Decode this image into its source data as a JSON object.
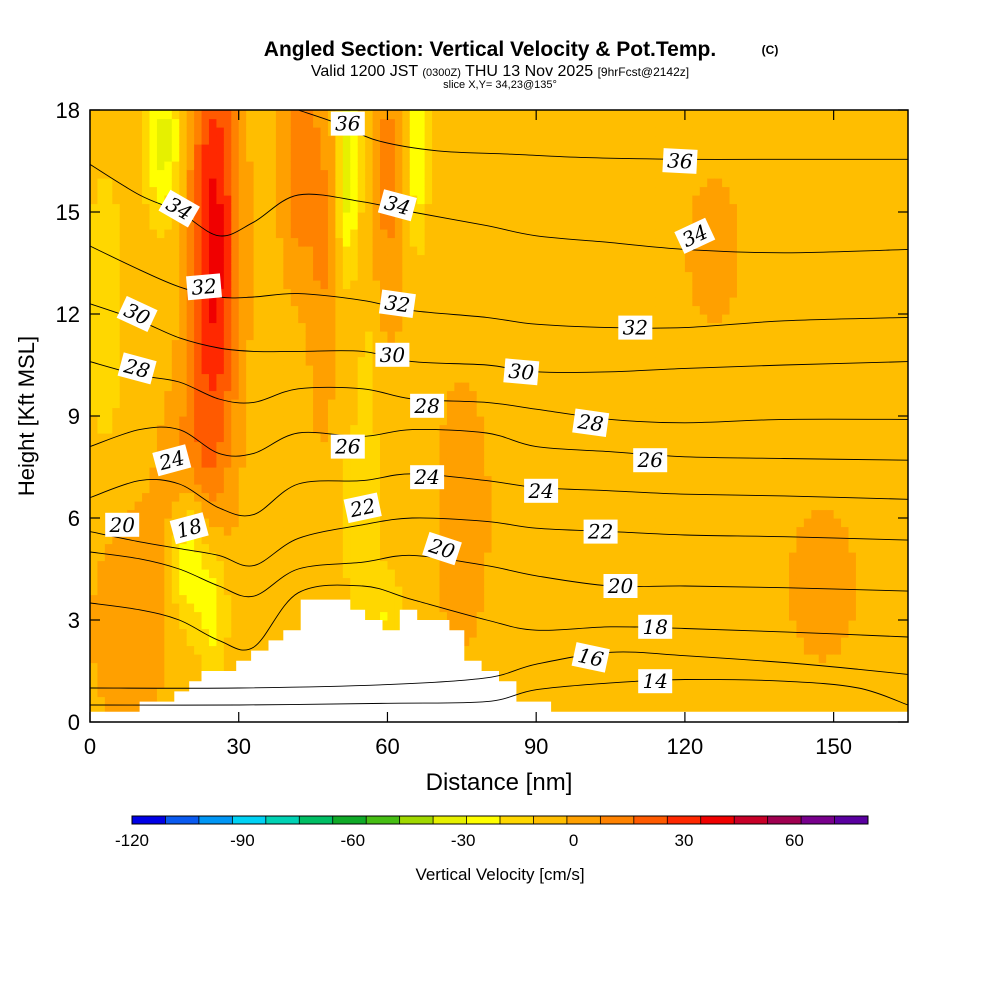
{
  "chart_data": {
    "type": "heatmap",
    "title": "Angled Section: Vertical Velocity & Pot.Temp.",
    "title_units": "(C)",
    "subtitle": {
      "valid_prefix": "Valid 1200 JST",
      "utc": "(0300Z)",
      "date": "THU 13 Nov 2025",
      "fcst": "[9hrFcst@2142z]"
    },
    "slice_label": "slice X,Y= 34,23@135°",
    "xlabel": "Distance [nm]",
    "ylabel": "Height [Kft MSL]",
    "xlim": [
      0,
      165
    ],
    "ylim": [
      0,
      18
    ],
    "xticks": [
      "0",
      "30",
      "60",
      "90",
      "120",
      "150"
    ],
    "xtick_values": [
      0,
      30,
      60,
      90,
      120,
      150
    ],
    "yticks": [
      "0",
      "3",
      "6",
      "9",
      "12",
      "15",
      "18"
    ],
    "ytick_values": [
      0,
      3,
      6,
      9,
      12,
      15,
      18
    ],
    "colorbar": {
      "label": "Vertical Velocity [cm/s]",
      "range": [
        -120,
        80
      ],
      "step": 10,
      "tick_labels": [
        "-120",
        "-90",
        "-60",
        "-30",
        "0",
        "30",
        "60"
      ],
      "tick_values": [
        -120,
        -90,
        -60,
        -30,
        0,
        30,
        60
      ],
      "colors": [
        "#0000e6",
        "#0a5af0",
        "#0096f5",
        "#00d2f5",
        "#00d2b4",
        "#00be64",
        "#10aa28",
        "#46be14",
        "#a0d800",
        "#e6f000",
        "#ffff00",
        "#ffd700",
        "#ffbe00",
        "#ffa000",
        "#ff8200",
        "#ff5a00",
        "#ff2800",
        "#f00000",
        "#c80028",
        "#a00050",
        "#78008c",
        "#5a00a0"
      ]
    },
    "terrain_profile": {
      "x_nm": [
        0,
        10,
        10,
        17,
        17,
        20,
        20,
        22.5,
        22.5,
        29.5,
        29.5,
        32.5,
        32.5,
        36,
        36,
        39,
        39,
        42.5,
        42.5,
        52.5,
        52.5,
        55.5,
        55.5,
        59,
        59,
        62.5,
        62.5,
        66,
        66,
        72.5,
        72.5,
        75.5,
        75.5,
        79,
        79,
        82.5,
        82.5,
        86,
        86,
        93,
        93,
        165
      ],
      "h_kft": [
        0.3,
        0.3,
        0.6,
        0.6,
        0.9,
        0.9,
        1.2,
        1.2,
        1.5,
        1.5,
        1.8,
        1.8,
        2.1,
        2.1,
        2.4,
        2.4,
        2.7,
        2.7,
        3.6,
        3.6,
        3.3,
        3.3,
        3.0,
        3.0,
        2.7,
        2.7,
        3.3,
        3.3,
        3.0,
        3.0,
        2.7,
        2.7,
        1.8,
        1.8,
        1.5,
        1.5,
        1.2,
        1.2,
        0.6,
        0.6,
        0.3,
        0.3
      ]
    },
    "theta_contours": [
      {
        "value": 14,
        "points": [
          [
            0,
            0.5
          ],
          [
            30,
            0.5
          ],
          [
            60,
            0.55
          ],
          [
            80,
            0.6
          ],
          [
            90,
            0.95
          ],
          [
            105,
            1.15
          ],
          [
            120,
            1.25
          ],
          [
            140,
            1.2
          ],
          [
            155,
            1.0
          ],
          [
            165,
            0.5
          ]
        ]
      },
      {
        "value": 16,
        "points": [
          [
            0,
            1.0
          ],
          [
            30,
            1.0
          ],
          [
            60,
            1.1
          ],
          [
            80,
            1.3
          ],
          [
            90,
            1.7
          ],
          [
            105,
            2.05
          ],
          [
            120,
            1.95
          ],
          [
            140,
            1.75
          ],
          [
            155,
            1.55
          ],
          [
            165,
            1.4
          ]
        ]
      },
      {
        "value": 18,
        "points": [
          [
            0,
            3.5
          ],
          [
            10,
            3.3
          ],
          [
            18,
            3.0
          ],
          [
            26,
            2.4
          ],
          [
            33,
            2.2
          ],
          [
            42,
            3.8
          ],
          [
            55,
            4.0
          ],
          [
            65,
            3.6
          ],
          [
            80,
            3.0
          ],
          [
            90,
            2.7
          ],
          [
            105,
            2.8
          ],
          [
            120,
            2.75
          ],
          [
            140,
            2.65
          ],
          [
            165,
            2.5
          ]
        ]
      },
      {
        "value": 20,
        "points": [
          [
            0,
            5.0
          ],
          [
            10,
            4.8
          ],
          [
            18,
            4.5
          ],
          [
            26,
            4.0
          ],
          [
            33,
            3.7
          ],
          [
            42,
            4.5
          ],
          [
            55,
            4.7
          ],
          [
            65,
            4.9
          ],
          [
            80,
            4.6
          ],
          [
            90,
            4.3
          ],
          [
            105,
            4.0
          ],
          [
            120,
            4.0
          ],
          [
            140,
            3.95
          ],
          [
            165,
            3.85
          ]
        ]
      },
      {
        "value": 22,
        "points": [
          [
            0,
            5.6
          ],
          [
            10,
            5.3
          ],
          [
            18,
            5.1
          ],
          [
            26,
            4.9
          ],
          [
            33,
            4.6
          ],
          [
            42,
            5.4
          ],
          [
            55,
            5.8
          ],
          [
            65,
            6.0
          ],
          [
            80,
            5.9
          ],
          [
            90,
            5.7
          ],
          [
            105,
            5.6
          ],
          [
            120,
            5.5
          ],
          [
            140,
            5.45
          ],
          [
            165,
            5.35
          ]
        ]
      },
      {
        "value": 24,
        "points": [
          [
            0,
            6.6
          ],
          [
            10,
            7.1
          ],
          [
            18,
            7.0
          ],
          [
            26,
            6.3
          ],
          [
            33,
            6.1
          ],
          [
            42,
            7.0
          ],
          [
            55,
            7.1
          ],
          [
            65,
            7.3
          ],
          [
            80,
            7.1
          ],
          [
            90,
            6.9
          ],
          [
            105,
            6.8
          ],
          [
            120,
            6.7
          ],
          [
            140,
            6.65
          ],
          [
            165,
            6.55
          ]
        ]
      },
      {
        "value": 26,
        "points": [
          [
            0,
            8.1
          ],
          [
            10,
            8.6
          ],
          [
            18,
            8.6
          ],
          [
            26,
            7.9
          ],
          [
            33,
            7.9
          ],
          [
            42,
            8.5
          ],
          [
            55,
            8.4
          ],
          [
            65,
            8.6
          ],
          [
            80,
            8.5
          ],
          [
            90,
            8.1
          ],
          [
            105,
            7.95
          ],
          [
            120,
            7.8
          ],
          [
            140,
            7.75
          ],
          [
            165,
            7.7
          ]
        ]
      },
      {
        "value": 28,
        "points": [
          [
            0,
            10.6
          ],
          [
            10,
            10.2
          ],
          [
            18,
            10.0
          ],
          [
            26,
            9.5
          ],
          [
            33,
            9.4
          ],
          [
            42,
            9.8
          ],
          [
            55,
            9.8
          ],
          [
            65,
            9.5
          ],
          [
            80,
            9.4
          ],
          [
            90,
            9.2
          ],
          [
            105,
            8.9
          ],
          [
            120,
            8.8
          ],
          [
            140,
            8.9
          ],
          [
            165,
            8.9
          ]
        ]
      },
      {
        "value": 30,
        "points": [
          [
            0,
            12.3
          ],
          [
            10,
            11.8
          ],
          [
            18,
            11.3
          ],
          [
            26,
            11.0
          ],
          [
            33,
            10.9
          ],
          [
            42,
            10.9
          ],
          [
            55,
            10.9
          ],
          [
            65,
            10.6
          ],
          [
            80,
            10.5
          ],
          [
            90,
            10.3
          ],
          [
            105,
            10.3
          ],
          [
            120,
            10.4
          ],
          [
            140,
            10.5
          ],
          [
            165,
            10.6
          ]
        ]
      },
      {
        "value": 32,
        "points": [
          [
            0,
            14.0
          ],
          [
            10,
            13.3
          ],
          [
            18,
            12.8
          ],
          [
            26,
            12.5
          ],
          [
            33,
            12.5
          ],
          [
            42,
            12.6
          ],
          [
            55,
            12.4
          ],
          [
            65,
            12.1
          ],
          [
            80,
            11.9
          ],
          [
            90,
            11.7
          ],
          [
            105,
            11.6
          ],
          [
            120,
            11.6
          ],
          [
            140,
            11.8
          ],
          [
            165,
            11.9
          ]
        ]
      },
      {
        "value": 34,
        "points": [
          [
            0,
            16.4
          ],
          [
            10,
            15.5
          ],
          [
            18,
            15.0
          ],
          [
            26,
            14.3
          ],
          [
            33,
            14.7
          ],
          [
            42,
            15.5
          ],
          [
            55,
            15.3
          ],
          [
            65,
            15.0
          ],
          [
            80,
            14.6
          ],
          [
            90,
            14.3
          ],
          [
            105,
            14.1
          ],
          [
            120,
            13.9
          ],
          [
            140,
            13.8
          ],
          [
            165,
            13.9
          ]
        ]
      },
      {
        "value": 36,
        "points": [
          [
            42,
            18.0
          ],
          [
            50,
            17.6
          ],
          [
            58,
            17.1
          ],
          [
            70,
            16.8
          ],
          [
            85,
            16.7
          ],
          [
            100,
            16.6
          ],
          [
            120,
            16.55
          ],
          [
            140,
            16.55
          ],
          [
            165,
            16.55
          ]
        ]
      }
    ],
    "contour_labels": [
      {
        "text": "36",
        "x": 52,
        "y": 17.6,
        "rot": 0
      },
      {
        "text": "36",
        "x": 119,
        "y": 16.5,
        "rot": 3
      },
      {
        "text": "34",
        "x": 18,
        "y": 15.1,
        "rot": 30
      },
      {
        "text": "34",
        "x": 62,
        "y": 15.2,
        "rot": 15
      },
      {
        "text": "34",
        "x": 122,
        "y": 14.3,
        "rot": -25
      },
      {
        "text": "32",
        "x": 23,
        "y": 12.8,
        "rot": -5
      },
      {
        "text": "32",
        "x": 62,
        "y": 12.3,
        "rot": 8
      },
      {
        "text": "32",
        "x": 110,
        "y": 11.6,
        "rot": 0
      },
      {
        "text": "30",
        "x": 9.5,
        "y": 12.0,
        "rot": 25
      },
      {
        "text": "30",
        "x": 61,
        "y": 10.8,
        "rot": 0
      },
      {
        "text": "30",
        "x": 87,
        "y": 10.3,
        "rot": 5
      },
      {
        "text": "28",
        "x": 9.5,
        "y": 10.4,
        "rot": 15
      },
      {
        "text": "28",
        "x": 68,
        "y": 9.3,
        "rot": 0
      },
      {
        "text": "28",
        "x": 101,
        "y": 8.8,
        "rot": 8
      },
      {
        "text": "26",
        "x": 52,
        "y": 8.1,
        "rot": 0
      },
      {
        "text": "26",
        "x": 113,
        "y": 7.7,
        "rot": 0
      },
      {
        "text": "24",
        "x": 16.5,
        "y": 7.7,
        "rot": -15
      },
      {
        "text": "24",
        "x": 68,
        "y": 7.2,
        "rot": 0
      },
      {
        "text": "24",
        "x": 91,
        "y": 6.8,
        "rot": 0
      },
      {
        "text": "22",
        "x": 55,
        "y": 6.3,
        "rot": -12
      },
      {
        "text": "22",
        "x": 103,
        "y": 5.6,
        "rot": 0
      },
      {
        "text": "20",
        "x": 6.5,
        "y": 5.8,
        "rot": 0
      },
      {
        "text": "20",
        "x": 71,
        "y": 5.1,
        "rot": 18
      },
      {
        "text": "20",
        "x": 107,
        "y": 4.0,
        "rot": 0
      },
      {
        "text": "18",
        "x": 20,
        "y": 5.7,
        "rot": -15
      },
      {
        "text": "18",
        "x": 114,
        "y": 2.8,
        "rot": 0
      },
      {
        "text": "16",
        "x": 101,
        "y": 1.9,
        "rot": 12
      },
      {
        "text": "14",
        "x": 114,
        "y": 1.2,
        "rot": 0
      }
    ],
    "velocity_field": {
      "background_cms": 5,
      "features": [
        {
          "x": 25,
          "h": 14.0,
          "sx": 3.5,
          "sh": 4.5,
          "w": 50
        },
        {
          "x": 42,
          "h": 16.5,
          "sx": 2.5,
          "sh": 2.5,
          "w": 22
        },
        {
          "x": 60,
          "h": 16.0,
          "sx": 3.0,
          "sh": 3.0,
          "w": 18
        },
        {
          "x": 47,
          "h": 14.0,
          "sx": 2.0,
          "sh": 4.0,
          "w": 15
        },
        {
          "x": 20,
          "h": 7.0,
          "sx": 4.0,
          "sh": 2.0,
          "w": 18
        },
        {
          "x": 8,
          "h": 3.0,
          "sx": 6.0,
          "sh": 2.5,
          "w": 12
        },
        {
          "x": 75,
          "h": 6.0,
          "sx": 4.0,
          "sh": 3.0,
          "w": 10
        },
        {
          "x": 52,
          "h": 16.5,
          "sx": 1.5,
          "sh": 2.0,
          "w": -35
        },
        {
          "x": 66,
          "h": 17.0,
          "sx": 1.5,
          "sh": 2.0,
          "w": -28
        },
        {
          "x": 15,
          "h": 17.0,
          "sx": 2.5,
          "sh": 1.5,
          "w": -30
        },
        {
          "x": 3,
          "h": 12.0,
          "sx": 3.0,
          "sh": 3.5,
          "w": -10
        },
        {
          "x": 20,
          "h": 5.0,
          "sx": 2.5,
          "sh": 1.5,
          "w": -35
        },
        {
          "x": 25,
          "h": 3.5,
          "sx": 2.0,
          "sh": 1.5,
          "w": -22
        },
        {
          "x": 54,
          "h": 6.0,
          "sx": 3.0,
          "sh": 2.0,
          "w": -10
        },
        {
          "x": 60,
          "h": 3.0,
          "sx": 2.5,
          "sh": 1.0,
          "w": -15
        },
        {
          "x": 56,
          "h": 10.0,
          "sx": 1.5,
          "sh": 6.0,
          "w": -8
        },
        {
          "x": 126,
          "h": 14.0,
          "sx": 5.0,
          "sh": 2.0,
          "w": 6
        },
        {
          "x": 148,
          "h": 4.0,
          "sx": 6.0,
          "sh": 2.0,
          "w": 8
        },
        {
          "x": 110,
          "h": 10.0,
          "sx": 30.0,
          "sh": 8.0,
          "w": 2
        }
      ]
    }
  }
}
